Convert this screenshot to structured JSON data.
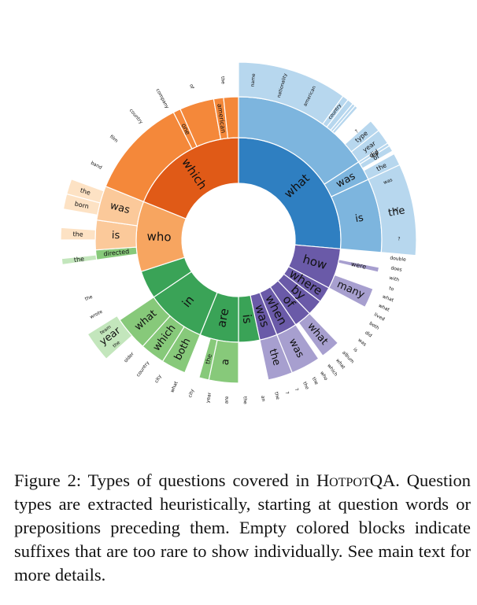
{
  "figure": {
    "caption_label": "Figure 2:",
    "caption_lead": "Types of questions covered in",
    "dataset_name": "HotpotQA",
    "caption_rest": ". Question types are extracted heuristically, starting at question words or prepositions preceding them. Empty colored blocks indicate suffixes that are too rare to show individually. See main text for more details."
  },
  "chart_data": {
    "type": "sunburst",
    "note": "Angles in degrees clockwise from 12 o'clock; rings 1-3 are successive words of the question.",
    "groups": [
      {
        "name": "what",
        "color_dark": "#2f7fc1",
        "color_mid": "#7db5de",
        "color_light": "#b7d7ee",
        "ring1": [
          {
            "label": "what",
            "a0": 0,
            "a1": 95
          }
        ],
        "ring2": [
          {
            "label": "",
            "a0": 0,
            "a1": 57
          },
          {
            "label": "was",
            "a0": 57,
            "a1": 65
          },
          {
            "label": "is",
            "a0": 65,
            "a1": 95
          }
        ],
        "ring3": [
          {
            "label": "",
            "a0": 0,
            "a1": 36
          },
          {
            "label": "",
            "a0": 36,
            "a1": 38
          },
          {
            "label": "",
            "a0": 38,
            "a1": 40
          },
          {
            "label": "",
            "a0": 40,
            "a1": 41
          },
          {
            "label": "",
            "a0": 41,
            "a1": 42
          },
          {
            "label": "type",
            "a0": 48,
            "a1": 52
          },
          {
            "label": "year",
            "a0": 52,
            "a1": 57
          },
          {
            "label": "did",
            "a0": 57,
            "a1": 58
          },
          {
            "label": "of",
            "a0": 58,
            "a1": 60
          },
          {
            "label": "the",
            "a0": 61,
            "a1": 65
          },
          {
            "label": "the",
            "a0": 65,
            "a1": 95
          }
        ],
        "small_labels": [
          "name",
          "nationality",
          "american",
          "country",
          "?",
          "did",
          "was",
          "of",
          "?"
        ]
      },
      {
        "name": "how/many/where/by/of/when/was",
        "color_dark": "#6a5aa8",
        "color_mid": "#a79fcf",
        "color_light": "#d2cde6",
        "ring1": [
          {
            "label": "how",
            "a0": 95,
            "a1": 118
          },
          {
            "label": "where",
            "a0": 118,
            "a1": 127
          },
          {
            "label": "by",
            "a0": 127,
            "a1": 136
          },
          {
            "label": "of",
            "a0": 136,
            "a1": 146
          },
          {
            "label": "when",
            "a0": 146,
            "a1": 158
          },
          {
            "label": "was",
            "a0": 158,
            "a1": 168
          }
        ],
        "ring2": [
          {
            "label": "were",
            "a0": 101,
            "a1": 103
          },
          {
            "label": "many",
            "a0": 110,
            "a1": 118
          },
          {
            "label": "what",
            "a0": 136,
            "a1": 144
          },
          {
            "label": "was",
            "a0": 146,
            "a1": 158
          },
          {
            "label": "the",
            "a0": 158,
            "a1": 168
          }
        ],
        "small_labels": [
          "double",
          "does",
          "with",
          "to",
          "what",
          "what",
          "lived",
          "both",
          "did",
          "was",
          "is",
          "album",
          "what",
          "which",
          "who",
          "the",
          "the",
          "?",
          "?",
          "the"
        ]
      },
      {
        "name": "is/are/in/which/both/what",
        "color_dark": "#3aa357",
        "color_mid": "#87c97a",
        "color_light": "#c3e6bc",
        "ring1": [
          {
            "label": "is",
            "a0": 168,
            "a1": 180
          },
          {
            "label": "are",
            "a0": 180,
            "a1": 202
          },
          {
            "label": "in",
            "a0": 202,
            "a1": 236
          },
          {
            "label": "",
            "a0": 236,
            "a1": 252
          }
        ],
        "ring2": [
          {
            "label": "a",
            "a0": 180,
            "a1": 192
          },
          {
            "label": "the",
            "a0": 192,
            "a1": 196
          },
          {
            "label": "both",
            "a0": 202,
            "a1": 212
          },
          {
            "label": "which",
            "a0": 212,
            "a1": 222
          },
          {
            "label": "what",
            "a0": 222,
            "a1": 236
          },
          {
            "label": "directed",
            "a0": 262,
            "a1": 266
          }
        ],
        "ring3": [
          {
            "label": "year",
            "a0": 228,
            "a1": 238
          },
          {
            "label": "the",
            "a0": 262,
            "a1": 264
          }
        ],
        "small_labels": [
          "an",
          "the",
          "are",
          "year",
          "city",
          "what",
          "city",
          "country",
          "older",
          "the",
          "team",
          "wrote",
          "the"
        ]
      },
      {
        "name": "who",
        "color_dark": "#f7a560",
        "color_mid": "#fbc99a",
        "color_light": "#fde2c4",
        "ring1": [
          {
            "label": "who",
            "a0": 252,
            "a1": 292
          }
        ],
        "ring2": [
          {
            "label": "is",
            "a0": 266,
            "a1": 278
          },
          {
            "label": "was",
            "a0": 278,
            "a1": 292
          }
        ],
        "ring3": [
          {
            "label": "the",
            "a0": 270,
            "a1": 274
          },
          {
            "label": "born",
            "a0": 280,
            "a1": 285
          },
          {
            "label": "the",
            "a0": 285,
            "a1": 290
          }
        ]
      },
      {
        "name": "which",
        "color_dark": "#e05a17",
        "color_mid": "#f4883a",
        "color_light": "#f8b078",
        "ring1": [
          {
            "label": "which",
            "a0": 292,
            "a1": 360
          }
        ],
        "ring2": [
          {
            "label": "",
            "a0": 292,
            "a1": 333
          },
          {
            "label": "one",
            "a0": 333,
            "a1": 336
          },
          {
            "label": "",
            "a0": 336,
            "a1": 350
          },
          {
            "label": "american",
            "a0": 350,
            "a1": 354
          },
          {
            "label": "",
            "a0": 354,
            "a1": 360
          }
        ],
        "small_labels": [
          "band",
          "film",
          "country",
          "company",
          "of",
          "the"
        ]
      }
    ]
  }
}
